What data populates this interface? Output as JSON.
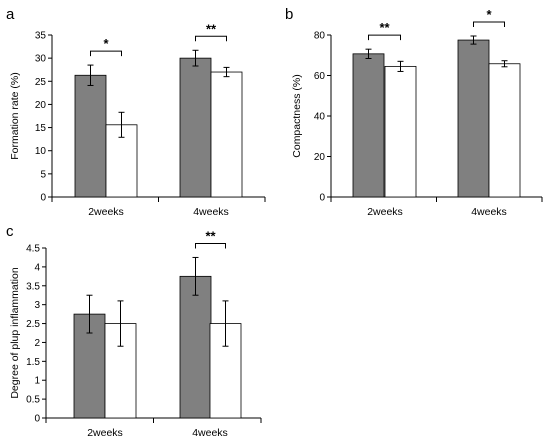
{
  "colors": {
    "series_a": "#808080",
    "series_b": "#ffffff",
    "stroke": "#000000"
  },
  "chart_data": [
    {
      "panel": "a",
      "type": "bar",
      "ylabel": "Formation rate (%)",
      "ylim": [
        0,
        35
      ],
      "yticks": [
        0,
        5,
        10,
        15,
        20,
        25,
        30,
        35
      ],
      "categories": [
        "2weeks",
        "4weeks"
      ],
      "series": [
        {
          "values": [
            26.3,
            30.0
          ],
          "errors": [
            2.2,
            1.7
          ]
        },
        {
          "values": [
            15.6,
            27.0
          ],
          "errors": [
            2.7,
            1.0
          ]
        }
      ],
      "significance": [
        "*",
        "**"
      ]
    },
    {
      "panel": "b",
      "type": "bar",
      "ylabel": "Compactness (%)",
      "ylim": [
        0,
        80
      ],
      "yticks": [
        0,
        20,
        40,
        60,
        80
      ],
      "categories": [
        "2weeks",
        "4weeks"
      ],
      "series": [
        {
          "values": [
            70.7,
            77.5
          ],
          "errors": [
            2.3,
            2.0
          ]
        },
        {
          "values": [
            64.5,
            65.8
          ],
          "errors": [
            2.5,
            1.5
          ]
        }
      ],
      "significance": [
        "**",
        "*"
      ]
    },
    {
      "panel": "c",
      "type": "bar",
      "ylabel": "Degree of plup inflammation",
      "ylim": [
        0,
        4.5
      ],
      "yticks": [
        0,
        0.5,
        1,
        1.5,
        2,
        2.5,
        3,
        3.5,
        4,
        4.5
      ],
      "categories": [
        "2weeks",
        "4weeks"
      ],
      "series": [
        {
          "values": [
            2.75,
            3.75
          ],
          "errors": [
            0.5,
            0.5
          ]
        },
        {
          "values": [
            2.5,
            2.5
          ],
          "errors": [
            0.6,
            0.6
          ]
        }
      ],
      "significance": [
        null,
        "**"
      ]
    }
  ]
}
